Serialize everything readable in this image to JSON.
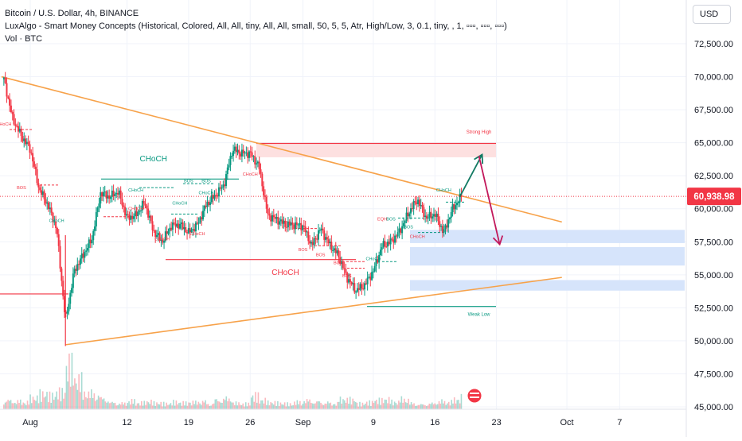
{
  "header": {
    "symbol_line": "Bitcoin / U.S. Dollar, 4h, BINANCE",
    "indicator_line": "LuxAlgo - Smart Money Concepts (Historical, Colored, All, All, tiny, All, All, small, 50, 5, 5, Atr, High/Low, 3, 0.1, tiny, , 1, ▫▫▫, ▫▫▫, ▫▫▫)",
    "volume_line": "Vol · BTC",
    "currency_button": "USD"
  },
  "price_tag": {
    "label": "60,938.98",
    "color": "#f23645"
  },
  "chart_data": {
    "type": "candlestick",
    "title": "Bitcoin / U.S. Dollar, 4h, BINANCE",
    "y_axis": {
      "range": [
        45000,
        73500
      ],
      "ticks": [
        45000,
        47500,
        50000,
        52500,
        55000,
        57500,
        60000,
        62500,
        65000,
        67500,
        70000,
        72500
      ],
      "tick_labels": [
        "45,000.00",
        "47,500.00",
        "50,000.00",
        "52,500.00",
        "55,000.00",
        "57,500.00",
        "60,000.00",
        "62,500.00",
        "65,000.00",
        "67,500.00",
        "70,000.00",
        "72,500.00"
      ]
    },
    "x_axis": {
      "ticks": [
        "2024-08-01",
        "2024-08-12",
        "2024-08-19",
        "2024-08-26",
        "2024-09-01",
        "2024-09-09",
        "2024-09-16",
        "2024-09-23",
        "2024-10-01",
        "2024-10-07"
      ],
      "tick_labels": [
        "Aug",
        "12",
        "19",
        "26",
        "Sep",
        "9",
        "16",
        "23",
        "Oct",
        "7"
      ]
    },
    "last_price": 60938.98,
    "price_path": [
      [
        "2024-07-29",
        69800
      ],
      [
        "2024-07-30",
        66800
      ],
      [
        "2024-07-31",
        65500
      ],
      [
        "2024-08-01",
        64500
      ],
      [
        "2024-08-02",
        61500
      ],
      [
        "2024-08-03",
        60300
      ],
      [
        "2024-08-04",
        58500
      ],
      [
        "2024-08-05",
        51500
      ],
      [
        "2024-08-06",
        55300
      ],
      [
        "2024-08-07",
        56500
      ],
      [
        "2024-08-08",
        57700
      ],
      [
        "2024-08-09",
        61200
      ],
      [
        "2024-08-10",
        60900
      ],
      [
        "2024-08-11",
        61300
      ],
      [
        "2024-08-12",
        59300
      ],
      [
        "2024-08-13",
        59500
      ],
      [
        "2024-08-14",
        60500
      ],
      [
        "2024-08-15",
        58300
      ],
      [
        "2024-08-16",
        57500
      ],
      [
        "2024-08-17",
        58700
      ],
      [
        "2024-08-18",
        58800
      ],
      [
        "2024-08-19",
        58200
      ],
      [
        "2024-08-20",
        58800
      ],
      [
        "2024-08-21",
        60300
      ],
      [
        "2024-08-22",
        61000
      ],
      [
        "2024-08-23",
        61800
      ],
      [
        "2024-08-24",
        64500
      ],
      [
        "2024-08-25",
        64200
      ],
      [
        "2024-08-26",
        64200
      ],
      [
        "2024-08-27",
        63200
      ],
      [
        "2024-08-28",
        59500
      ],
      [
        "2024-08-29",
        59200
      ],
      [
        "2024-08-30",
        58800
      ],
      [
        "2024-08-31",
        58800
      ],
      [
        "2024-09-01",
        58700
      ],
      [
        "2024-09-02",
        57200
      ],
      [
        "2024-09-03",
        58500
      ],
      [
        "2024-09-04",
        57300
      ],
      [
        "2024-09-05",
        56500
      ],
      [
        "2024-09-06",
        54800
      ],
      [
        "2024-09-07",
        53800
      ],
      [
        "2024-09-08",
        54200
      ],
      [
        "2024-09-09",
        55300
      ],
      [
        "2024-09-10",
        57200
      ],
      [
        "2024-09-11",
        57500
      ],
      [
        "2024-09-12",
        58300
      ],
      [
        "2024-09-13",
        59700
      ],
      [
        "2024-09-14",
        60700
      ],
      [
        "2024-09-15",
        59300
      ],
      [
        "2024-09-16",
        59600
      ],
      [
        "2024-09-17",
        58200
      ],
      [
        "2024-09-18",
        60000
      ],
      [
        "2024-09-19",
        60939
      ]
    ],
    "zones": [
      {
        "name": "Strong High",
        "top": 64900,
        "bottom": 63900,
        "color": "#fde0e0"
      },
      {
        "name": "demand-zone-1",
        "top": 58400,
        "bottom": 57400,
        "color": "#d6e4fb"
      },
      {
        "name": "demand-zone-2",
        "top": 57100,
        "bottom": 55700,
        "color": "#d6e4fb"
      },
      {
        "name": "demand-zone-3",
        "top": 54600,
        "bottom": 53800,
        "color": "#d6e4fb"
      }
    ],
    "trendlines": [
      {
        "name": "descending-trendline",
        "from": [
          "2024-07-29",
          70000
        ],
        "to": [
          "2024-09-25",
          59000
        ],
        "color": "#f7a24a"
      },
      {
        "name": "ascending-trendline",
        "from": [
          "2024-08-05",
          49700
        ],
        "to": [
          "2024-09-25",
          54800
        ],
        "color": "#f7a24a"
      }
    ],
    "projection": [
      {
        "name": "up-arrow",
        "from": [
          "2024-09-19",
          60900
        ],
        "to": [
          "2024-09-21",
          64100
        ],
        "color": "#137a63"
      },
      {
        "name": "down-arrow",
        "from": [
          "2024-09-21",
          64000
        ],
        "to": [
          "2024-09-23",
          57300
        ],
        "color": "#c2185b"
      }
    ],
    "annotations": [
      {
        "text": "Strong High",
        "x": "2024-09-21",
        "y": 65700,
        "color": "#f23645"
      },
      {
        "text": "Weak Low",
        "x": "2024-09-21",
        "y": 51900,
        "color": "#089981"
      },
      {
        "text": "CHoCH",
        "x": "2024-08-15",
        "y": 63600,
        "color": "#089981"
      },
      {
        "text": "CHoCH",
        "x": "2024-08-30",
        "y": 55000,
        "color": "#f23645"
      },
      {
        "text": "CHoCH",
        "x": "2024-08-13",
        "y": 61300,
        "color": "#089981"
      },
      {
        "text": "CHoCH",
        "x": "2024-08-04",
        "y": 59000,
        "color": "#089981"
      },
      {
        "text": "CHoCH",
        "x": "2024-08-13",
        "y": 59900,
        "color": "#f23645"
      },
      {
        "text": "CHoCH",
        "x": "2024-08-18",
        "y": 60300,
        "color": "#089981"
      },
      {
        "text": "CHoCH",
        "x": "2024-08-20",
        "y": 58000,
        "color": "#f23645"
      },
      {
        "text": "CHoCH",
        "x": "2024-08-21",
        "y": 61100,
        "color": "#089981"
      },
      {
        "text": "CHoCH",
        "x": "2024-08-16",
        "y": 57600,
        "color": "#f23645"
      },
      {
        "text": "CHoCH",
        "x": "2024-08-26",
        "y": 62500,
        "color": "#f23645"
      },
      {
        "text": "CHoCH",
        "x": "2024-07-29",
        "y": 66300,
        "color": "#f23645"
      },
      {
        "text": "CHoCH",
        "x": "2024-09-09",
        "y": 56100,
        "color": "#089981"
      },
      {
        "text": "CHoCH",
        "x": "2024-09-14",
        "y": 57800,
        "color": "#f23645"
      },
      {
        "text": "BOS",
        "x": "2024-07-31",
        "y": 61500,
        "color": "#f23645"
      },
      {
        "text": "BOS",
        "x": "2024-08-19",
        "y": 62000,
        "color": "#089981"
      },
      {
        "text": "BOS",
        "x": "2024-08-21",
        "y": 62000,
        "color": "#089981"
      },
      {
        "text": "BOS",
        "x": "2024-09-01",
        "y": 56800,
        "color": "#f23645"
      },
      {
        "text": "BOS",
        "x": "2024-09-03",
        "y": 56400,
        "color": "#f23645"
      },
      {
        "text": "BOS",
        "x": "2024-09-05",
        "y": 55800,
        "color": "#f23645"
      },
      {
        "text": "BOS",
        "x": "2024-09-06",
        "y": 54800,
        "color": "#f23645"
      },
      {
        "text": "EQH",
        "x": "2024-09-10",
        "y": 59100,
        "color": "#f23645"
      },
      {
        "text": "BOS",
        "x": "2024-09-11",
        "y": 59100,
        "color": "#089981"
      },
      {
        "text": "BOS",
        "x": "2024-09-13",
        "y": 58500,
        "color": "#089981"
      },
      {
        "text": "CHoCH",
        "x": "2024-09-17",
        "y": 61300,
        "color": "#089981"
      }
    ],
    "volume": {
      "peak_date": "2024-08-05",
      "values": [
        18,
        16,
        14,
        22,
        28,
        24,
        30,
        80,
        55,
        32,
        30,
        22,
        14,
        12,
        16,
        12,
        14,
        11,
        10,
        13,
        12,
        14,
        16,
        12,
        20,
        22,
        12,
        10,
        24,
        16,
        12,
        11,
        10,
        14,
        18,
        16,
        14,
        12,
        20,
        18,
        10,
        12,
        16,
        18,
        14,
        20,
        12,
        10,
        12,
        16,
        14,
        18,
        22
      ]
    }
  }
}
